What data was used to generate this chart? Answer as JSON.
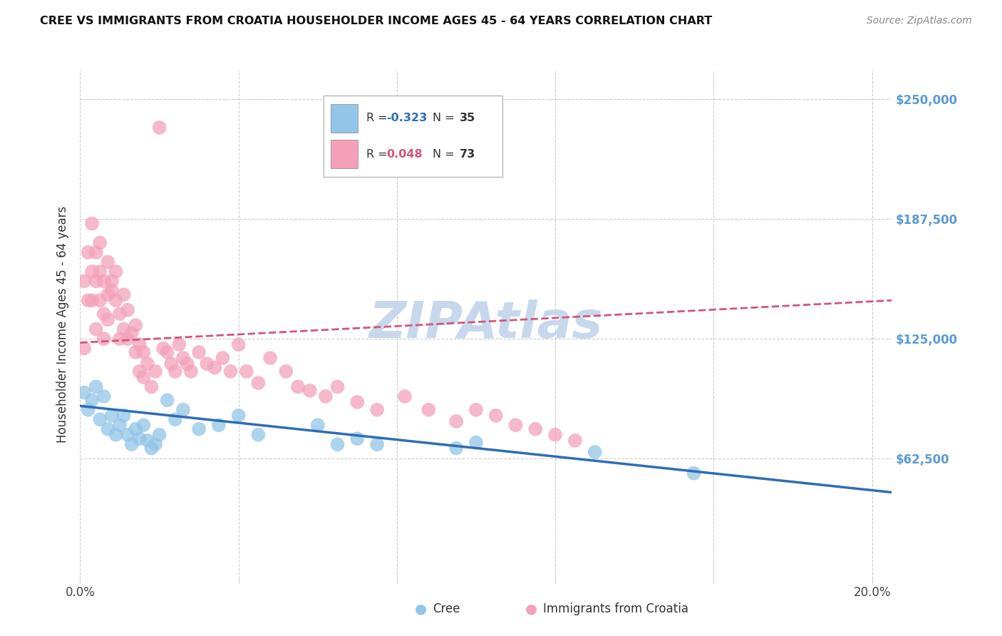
{
  "title": "CREE VS IMMIGRANTS FROM CROATIA HOUSEHOLDER INCOME AGES 45 - 64 YEARS CORRELATION CHART",
  "source": "Source: ZipAtlas.com",
  "ylabel": "Householder Income Ages 45 - 64 years",
  "xlim": [
    0.0,
    0.205
  ],
  "ylim": [
    0,
    265000
  ],
  "yticks": [
    0,
    62500,
    125000,
    187500,
    250000
  ],
  "ytick_labels": [
    "",
    "$62,500",
    "$125,000",
    "$187,500",
    "$250,000"
  ],
  "xticks": [
    0.0,
    0.04,
    0.08,
    0.12,
    0.16,
    0.2
  ],
  "cree_color": "#92C5E8",
  "croatia_color": "#F4A0BA",
  "cree_line_color": "#2E6DB4",
  "croatia_line_color": "#D4547A",
  "background_color": "#FFFFFF",
  "grid_color": "#CCCCCC",
  "watermark_color": "#C8D8EC",
  "right_label_color": "#5B9BD5",
  "cree_x": [
    0.001,
    0.002,
    0.003,
    0.004,
    0.005,
    0.006,
    0.007,
    0.008,
    0.009,
    0.01,
    0.011,
    0.012,
    0.013,
    0.014,
    0.015,
    0.016,
    0.017,
    0.018,
    0.019,
    0.02,
    0.022,
    0.024,
    0.026,
    0.03,
    0.035,
    0.04,
    0.045,
    0.06,
    0.065,
    0.07,
    0.075,
    0.095,
    0.1,
    0.13,
    0.155
  ],
  "cree_y": [
    97000,
    88000,
    93000,
    100000,
    83000,
    95000,
    78000,
    85000,
    75000,
    80000,
    85000,
    75000,
    70000,
    78000,
    73000,
    80000,
    72000,
    68000,
    70000,
    75000,
    93000,
    83000,
    88000,
    78000,
    80000,
    85000,
    75000,
    80000,
    70000,
    73000,
    70000,
    68000,
    71000,
    66000,
    55000
  ],
  "croatia_x": [
    0.001,
    0.001,
    0.002,
    0.002,
    0.003,
    0.003,
    0.003,
    0.004,
    0.004,
    0.004,
    0.005,
    0.005,
    0.005,
    0.006,
    0.006,
    0.006,
    0.007,
    0.007,
    0.007,
    0.008,
    0.008,
    0.009,
    0.009,
    0.01,
    0.01,
    0.011,
    0.011,
    0.012,
    0.012,
    0.013,
    0.014,
    0.014,
    0.015,
    0.015,
    0.016,
    0.016,
    0.017,
    0.018,
    0.019,
    0.02,
    0.021,
    0.022,
    0.023,
    0.024,
    0.025,
    0.026,
    0.027,
    0.028,
    0.03,
    0.032,
    0.034,
    0.036,
    0.038,
    0.04,
    0.042,
    0.045,
    0.048,
    0.052,
    0.055,
    0.058,
    0.062,
    0.065,
    0.07,
    0.075,
    0.082,
    0.088,
    0.095,
    0.1,
    0.105,
    0.11,
    0.115,
    0.12,
    0.125
  ],
  "croatia_y": [
    120000,
    155000,
    170000,
    145000,
    160000,
    185000,
    145000,
    170000,
    155000,
    130000,
    160000,
    175000,
    145000,
    155000,
    138000,
    125000,
    148000,
    165000,
    135000,
    150000,
    155000,
    145000,
    160000,
    138000,
    125000,
    148000,
    130000,
    140000,
    125000,
    128000,
    132000,
    118000,
    122000,
    108000,
    118000,
    105000,
    112000,
    100000,
    108000,
    235000,
    120000,
    118000,
    112000,
    108000,
    122000,
    115000,
    112000,
    108000,
    118000,
    112000,
    110000,
    115000,
    108000,
    122000,
    108000,
    102000,
    115000,
    108000,
    100000,
    98000,
    95000,
    100000,
    92000,
    88000,
    95000,
    88000,
    82000,
    88000,
    85000,
    80000,
    78000,
    75000,
    72000
  ]
}
